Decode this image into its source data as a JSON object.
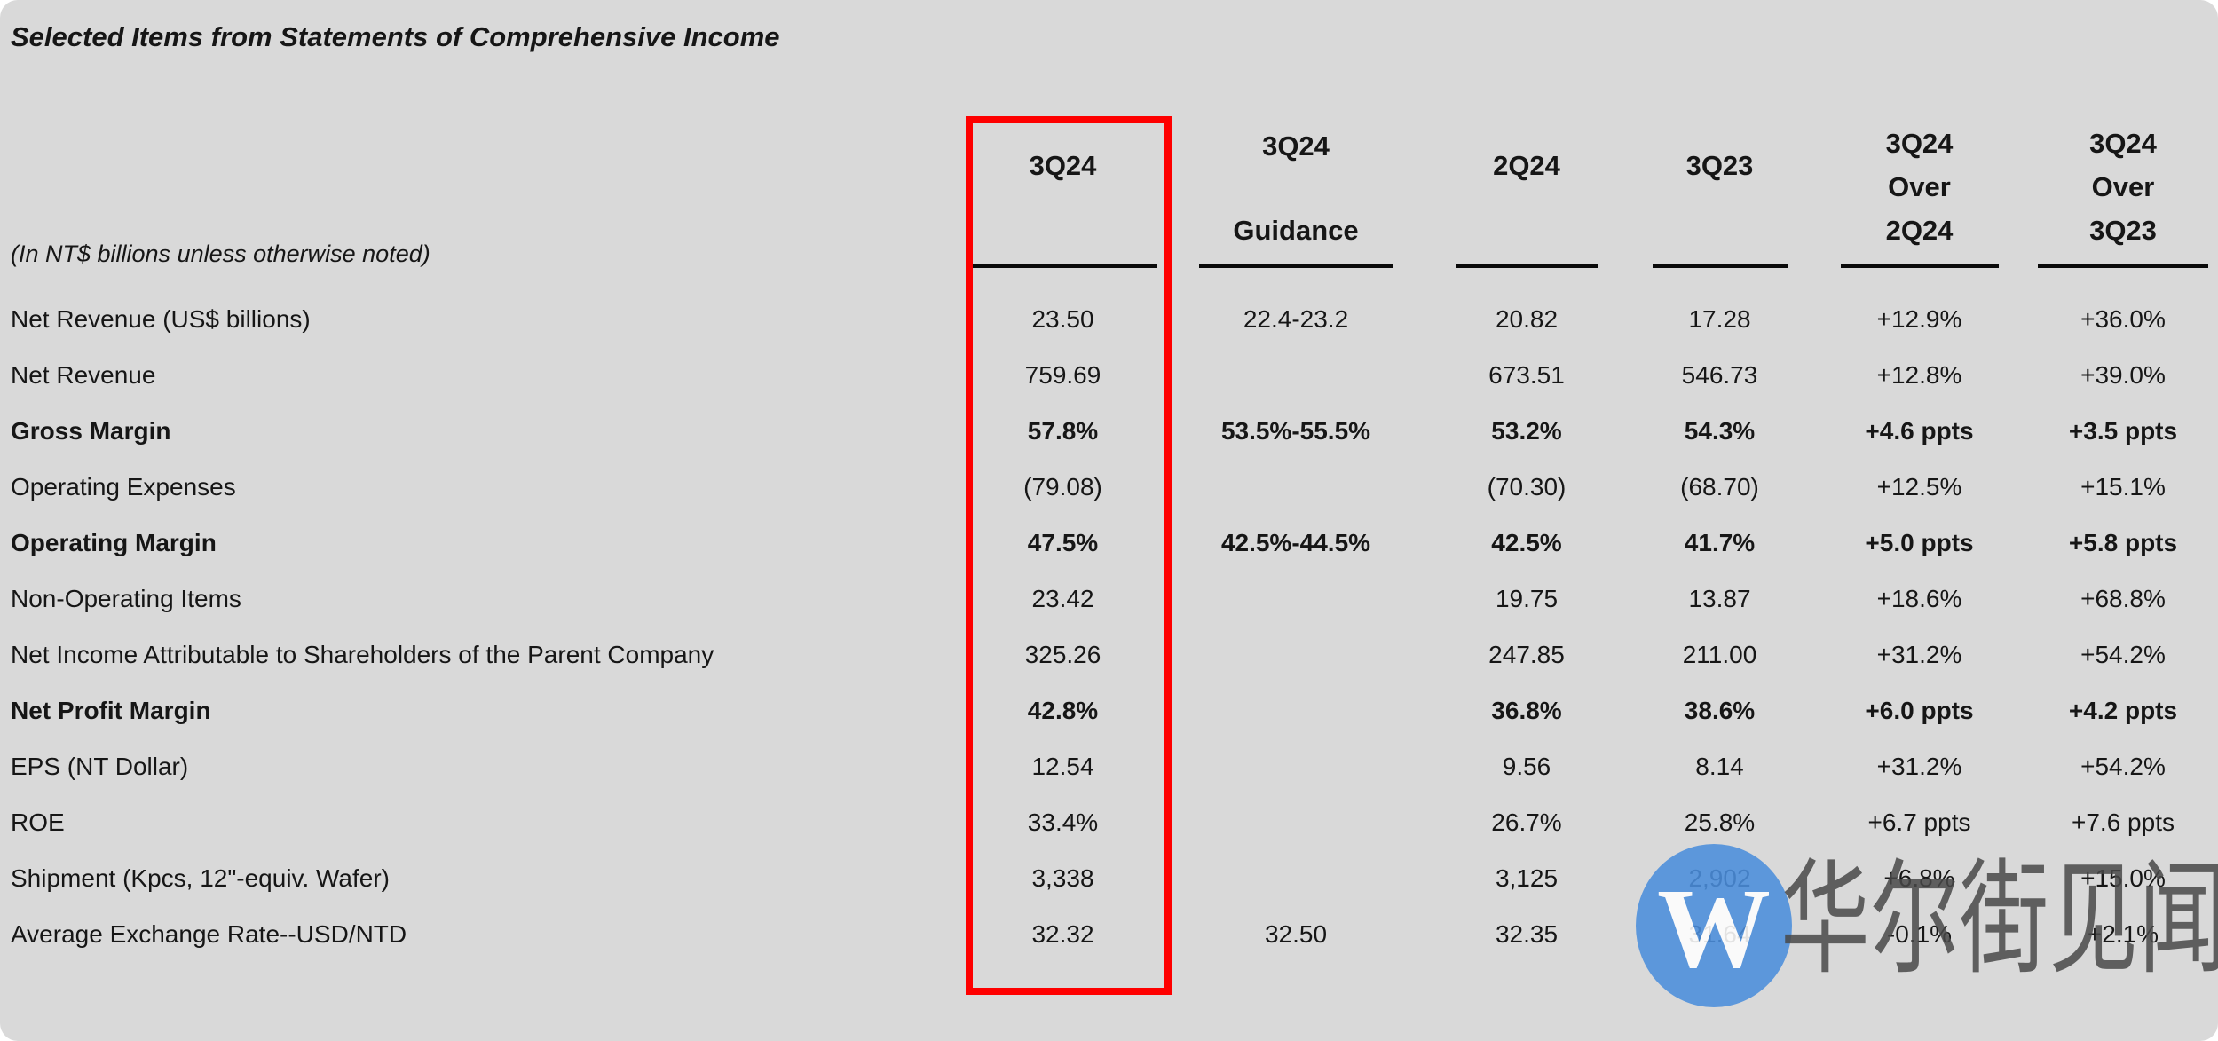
{
  "title": "Selected Items from Statements of Comprehensive Income",
  "subtitle": "(In NT$ billions unless otherwise noted)",
  "table": {
    "columns": [
      {
        "id": "q3_24",
        "label_lines": [
          "3Q24"
        ],
        "highlighted": true
      },
      {
        "id": "guidance_3q24",
        "label_lines": [
          "3Q24",
          "Guidance"
        ],
        "highlighted": false
      },
      {
        "id": "q2_24",
        "label_lines": [
          "2Q24"
        ],
        "highlighted": false
      },
      {
        "id": "q3_23",
        "label_lines": [
          "3Q23"
        ],
        "highlighted": false
      },
      {
        "id": "qoq",
        "label_lines": [
          "3Q24",
          "Over",
          "2Q24"
        ],
        "highlighted": false
      },
      {
        "id": "yoy",
        "label_lines": [
          "3Q24",
          "Over",
          "3Q23"
        ],
        "highlighted": false
      }
    ],
    "rows": [
      {
        "label": "Net Revenue (US$ billions)",
        "bold": false,
        "values": [
          "23.50",
          "22.4-23.2",
          "20.82",
          "17.28",
          "+12.9%",
          "+36.0%"
        ]
      },
      {
        "label": "Net Revenue",
        "bold": false,
        "values": [
          "759.69",
          "",
          "673.51",
          "546.73",
          "+12.8%",
          "+39.0%"
        ]
      },
      {
        "label": "Gross Margin",
        "bold": true,
        "values": [
          "57.8%",
          "53.5%-55.5%",
          "53.2%",
          "54.3%",
          "+4.6 ppts",
          "+3.5 ppts"
        ]
      },
      {
        "label": "Operating Expenses",
        "bold": false,
        "values": [
          "(79.08)",
          "",
          "(70.30)",
          "(68.70)",
          "+12.5%",
          "+15.1%"
        ]
      },
      {
        "label": "Operating Margin",
        "bold": true,
        "values": [
          "47.5%",
          "42.5%-44.5%",
          "42.5%",
          "41.7%",
          "+5.0 ppts",
          "+5.8 ppts"
        ]
      },
      {
        "label": "Non-Operating Items",
        "bold": false,
        "values": [
          "23.42",
          "",
          "19.75",
          "13.87",
          "+18.6%",
          "+68.8%"
        ]
      },
      {
        "label": "Net Income Attributable to Shareholders of the Parent Company",
        "bold": false,
        "values": [
          "325.26",
          "",
          "247.85",
          "211.00",
          "+31.2%",
          "+54.2%"
        ]
      },
      {
        "label": "Net Profit Margin",
        "bold": true,
        "values": [
          "42.8%",
          "",
          "36.8%",
          "38.6%",
          "+6.0 ppts",
          "+4.2 ppts"
        ]
      },
      {
        "label": "EPS (NT Dollar)",
        "bold": false,
        "values": [
          "12.54",
          "",
          "9.56",
          "8.14",
          "+31.2%",
          "+54.2%"
        ]
      },
      {
        "label": "ROE",
        "bold": false,
        "values": [
          "33.4%",
          "",
          "26.7%",
          "25.8%",
          "+6.7 ppts",
          "+7.6 ppts"
        ]
      },
      {
        "label": "Shipment (Kpcs, 12\"-equiv. Wafer)",
        "bold": false,
        "values": [
          "3,338",
          "",
          "3,125",
          "2,902",
          "+6.8%",
          "+15.0%"
        ]
      },
      {
        "label": "Average Exchange Rate--USD/NTD",
        "bold": false,
        "values": [
          "32.32",
          "32.50",
          "32.35",
          "31.64",
          "-0.1%",
          "+2.1%"
        ]
      }
    ]
  },
  "highlight": {
    "column": "3Q24",
    "box_color": "#fe0000"
  },
  "watermark": {
    "logo_letter": "W",
    "logo_color": "#4b8edc",
    "text": "华尔街见闻"
  },
  "colors": {
    "background": "#d9d9d9",
    "text": "#161616",
    "underline": "#0a0a0a"
  }
}
